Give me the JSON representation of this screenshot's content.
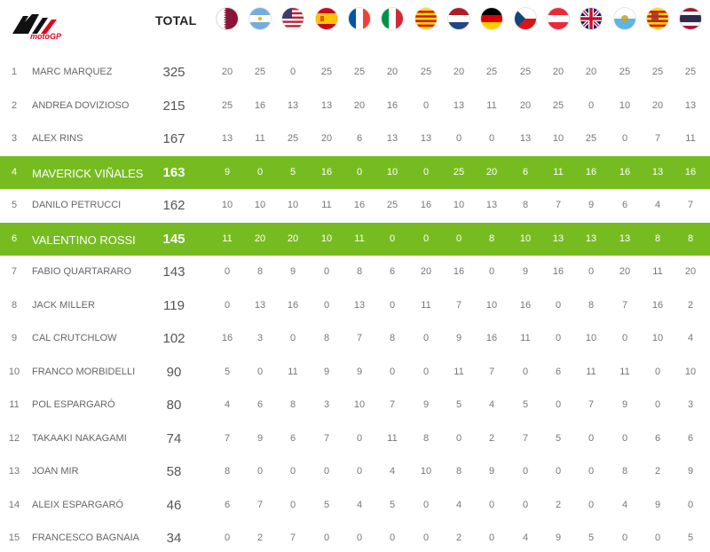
{
  "header": {
    "logo_text": "motoGP",
    "total_label": "TOTAL",
    "flags": [
      {
        "name": "qatar-flag-icon"
      },
      {
        "name": "argentina-flag-icon"
      },
      {
        "name": "usa-flag-icon"
      },
      {
        "name": "spain-flag-icon"
      },
      {
        "name": "france-flag-icon"
      },
      {
        "name": "italy-flag-icon"
      },
      {
        "name": "catalunya-flag-icon"
      },
      {
        "name": "netherlands-flag-icon"
      },
      {
        "name": "germany-flag-icon"
      },
      {
        "name": "czech-flag-icon"
      },
      {
        "name": "austria-flag-icon"
      },
      {
        "name": "uk-flag-icon"
      },
      {
        "name": "san-marino-flag-icon"
      },
      {
        "name": "aragon-flag-icon"
      },
      {
        "name": "thailand-flag-icon"
      }
    ]
  },
  "colors": {
    "highlight": "#76bc21",
    "logo_red": "#e2001a"
  },
  "riders": [
    {
      "pos": "1",
      "name": "MARC MARQUEZ",
      "total": "325",
      "highlight": false,
      "points": [
        "20",
        "25",
        "0",
        "25",
        "25",
        "20",
        "25",
        "20",
        "25",
        "25",
        "20",
        "20",
        "25",
        "25",
        "25"
      ]
    },
    {
      "pos": "2",
      "name": "ANDREA DOVIZIOSO",
      "total": "215",
      "highlight": false,
      "points": [
        "25",
        "16",
        "13",
        "13",
        "20",
        "16",
        "0",
        "13",
        "11",
        "20",
        "25",
        "0",
        "10",
        "20",
        "13"
      ]
    },
    {
      "pos": "3",
      "name": "ALEX RINS",
      "total": "167",
      "highlight": false,
      "points": [
        "13",
        "11",
        "25",
        "20",
        "6",
        "13",
        "13",
        "0",
        "0",
        "13",
        "10",
        "25",
        "0",
        "7",
        "11"
      ]
    },
    {
      "pos": "4",
      "name": "MAVERICK VIÑALES",
      "total": "163",
      "highlight": true,
      "points": [
        "9",
        "0",
        "5",
        "16",
        "0",
        "10",
        "0",
        "25",
        "20",
        "6",
        "11",
        "16",
        "16",
        "13",
        "16"
      ]
    },
    {
      "pos": "5",
      "name": "DANILO PETRUCCI",
      "total": "162",
      "highlight": false,
      "points": [
        "10",
        "10",
        "10",
        "11",
        "16",
        "25",
        "16",
        "10",
        "13",
        "8",
        "7",
        "9",
        "6",
        "4",
        "7"
      ]
    },
    {
      "pos": "6",
      "name": "VALENTINO ROSSI",
      "total": "145",
      "highlight": true,
      "points": [
        "11",
        "20",
        "20",
        "10",
        "11",
        "0",
        "0",
        "0",
        "8",
        "10",
        "13",
        "13",
        "13",
        "8",
        "8"
      ]
    },
    {
      "pos": "7",
      "name": "FABIO QUARTARARO",
      "total": "143",
      "highlight": false,
      "points": [
        "0",
        "8",
        "9",
        "0",
        "8",
        "6",
        "20",
        "16",
        "0",
        "9",
        "16",
        "0",
        "20",
        "11",
        "20"
      ]
    },
    {
      "pos": "8",
      "name": "JACK MILLER",
      "total": "119",
      "highlight": false,
      "points": [
        "0",
        "13",
        "16",
        "0",
        "13",
        "0",
        "11",
        "7",
        "10",
        "16",
        "0",
        "8",
        "7",
        "16",
        "2"
      ]
    },
    {
      "pos": "9",
      "name": "CAL CRUTCHLOW",
      "total": "102",
      "highlight": false,
      "points": [
        "16",
        "3",
        "0",
        "8",
        "7",
        "8",
        "0",
        "9",
        "16",
        "11",
        "0",
        "10",
        "0",
        "10",
        "4"
      ]
    },
    {
      "pos": "10",
      "name": "FRANCO MORBIDELLI",
      "total": "90",
      "highlight": false,
      "points": [
        "5",
        "0",
        "11",
        "9",
        "9",
        "0",
        "0",
        "11",
        "7",
        "0",
        "6",
        "11",
        "11",
        "0",
        "10"
      ]
    },
    {
      "pos": "11",
      "name": "POL ESPARGARÓ",
      "total": "80",
      "highlight": false,
      "points": [
        "4",
        "6",
        "8",
        "3",
        "10",
        "7",
        "9",
        "5",
        "4",
        "5",
        "0",
        "7",
        "9",
        "0",
        "3"
      ]
    },
    {
      "pos": "12",
      "name": "TAKAAKI NAKAGAMI",
      "total": "74",
      "highlight": false,
      "points": [
        "7",
        "9",
        "6",
        "7",
        "0",
        "11",
        "8",
        "0",
        "2",
        "7",
        "5",
        "0",
        "0",
        "6",
        "6"
      ]
    },
    {
      "pos": "13",
      "name": "JOAN MIR",
      "total": "58",
      "highlight": false,
      "points": [
        "8",
        "0",
        "0",
        "0",
        "0",
        "4",
        "10",
        "8",
        "9",
        "0",
        "0",
        "0",
        "8",
        "2",
        "9"
      ]
    },
    {
      "pos": "14",
      "name": "ALEIX ESPARGARÓ",
      "total": "46",
      "highlight": false,
      "points": [
        "6",
        "7",
        "0",
        "5",
        "4",
        "5",
        "0",
        "4",
        "0",
        "0",
        "2",
        "0",
        "4",
        "9",
        "0"
      ]
    },
    {
      "pos": "15",
      "name": "FRANCESCO BAGNAIA",
      "total": "34",
      "highlight": false,
      "points": [
        "0",
        "2",
        "7",
        "0",
        "0",
        "0",
        "0",
        "2",
        "0",
        "4",
        "9",
        "5",
        "0",
        "0",
        "5"
      ]
    }
  ]
}
